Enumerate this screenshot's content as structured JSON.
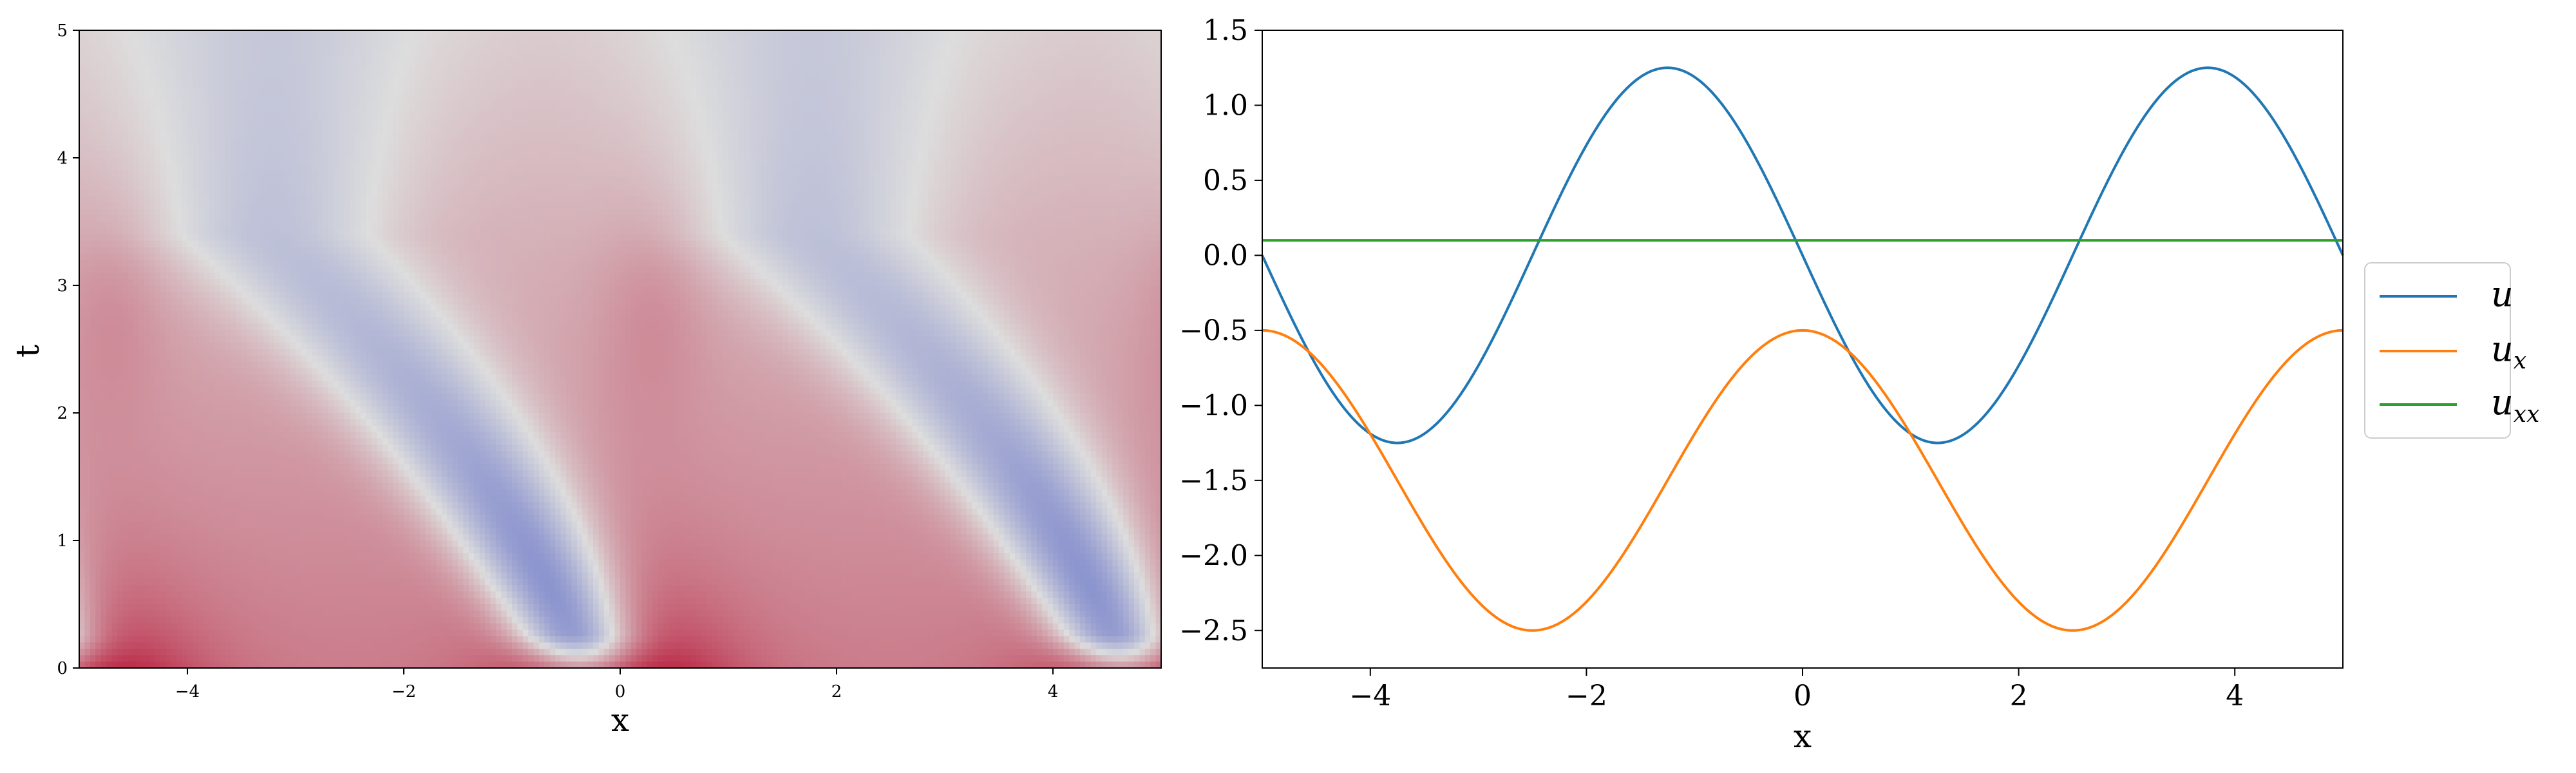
{
  "chart_data": [
    {
      "type": "heatmap",
      "xlabel": "x",
      "ylabel": "t",
      "xlim": [
        -5,
        5
      ],
      "ylim": [
        0,
        5
      ],
      "x_ticks": [
        -4,
        -2,
        0,
        2,
        4
      ],
      "y_ticks": [
        0,
        1,
        2,
        3,
        4,
        5
      ],
      "colormap": "coolwarm",
      "colors": {
        "low": "#3b4cc0",
        "mid": "#dddddd",
        "high": "#b40426"
      },
      "field": {
        "spatial_period": 5,
        "description_values": "traveling wave, peak at x=0,t=0; low band along curve through x=-1,t=1 repeating every 5 units in x"
      }
    },
    {
      "type": "line",
      "xlabel": "x",
      "ylabel": "",
      "xlim": [
        -5,
        5
      ],
      "ylim": [
        -2.75,
        1.5
      ],
      "x_ticks": [
        -4,
        -2,
        0,
        2,
        4
      ],
      "y_ticks": [
        -2.5,
        -2.0,
        -1.5,
        -1.0,
        -0.5,
        0.0,
        0.5,
        1.0,
        1.5
      ],
      "grid": false,
      "legend_position": "outside-right",
      "series": [
        {
          "name": "u",
          "color": "#1f77b4",
          "formula": "-1.25*sin(2*pi*x/5)",
          "x_start": -5,
          "x_end": 5
        },
        {
          "name": "u_x",
          "color": "#ff7f0e",
          "formula": "-1.5 + 1.0*cos(2*pi*x/5)",
          "x_start": -5,
          "x_end": 5
        },
        {
          "name": "u_xx",
          "color": "#2ca02c",
          "constant": 0.1,
          "x_start": -5,
          "x_end": 5
        }
      ]
    }
  ],
  "legend": [
    {
      "base": "u",
      "sub": "",
      "color": "#1f77b4"
    },
    {
      "base": "u",
      "sub": "x",
      "color": "#ff7f0e"
    },
    {
      "base": "u",
      "sub": "xx",
      "color": "#2ca02c"
    }
  ]
}
